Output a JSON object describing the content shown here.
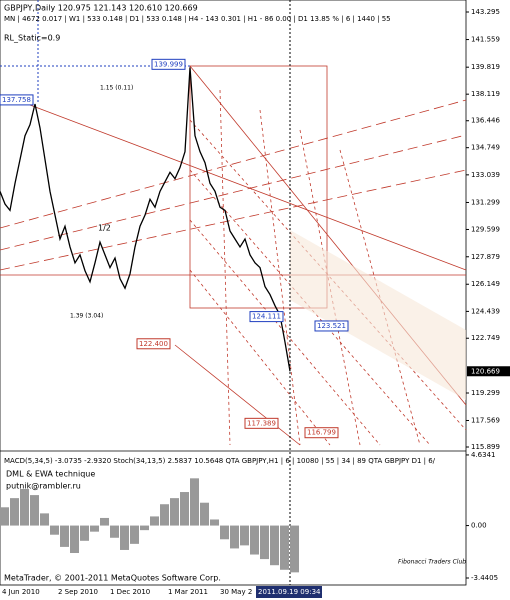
{
  "chart_data": {
    "type": "line",
    "title": "GBPJPY,Daily  120.975 121.143 120.610 120.669",
    "subtitle": "MN | 4672  0.017 | W1 | 533  0.148 | D1 | 533  0.148 | H4 - 143  0.301 | H1 - 86  0.00 | D1  13.85 % | 6 | 1440 | 55",
    "indicator_label": "RL_Static=0.9",
    "color": "#000000",
    "values": [
      132.0,
      131.2,
      130.8,
      132.5,
      134.0,
      135.5,
      136.2,
      137.5,
      136.0,
      134.0,
      132.0,
      130.5,
      129.0,
      129.8,
      128.5,
      127.5,
      128.0,
      127.0,
      126.3,
      127.5,
      128.8,
      128.0,
      127.2,
      127.8,
      126.5,
      125.9,
      126.8,
      128.5,
      129.8,
      130.5,
      131.5,
      131.0,
      132.0,
      132.6,
      133.2,
      132.8,
      133.5,
      134.5,
      139.8,
      135.5,
      134.5,
      133.8,
      132.5,
      132.0,
      131.0,
      130.8,
      129.5,
      129.0,
      128.5,
      129.0,
      128.0,
      127.5,
      127.2,
      126.0,
      125.5,
      124.8,
      124.2,
      122.5,
      120.669
    ],
    "ylim": [
      115.71,
      144.05
    ],
    "yticks": [
      143.295,
      141.559,
      139.819,
      138.119,
      136.446,
      134.749,
      133.039,
      131.299,
      129.599,
      127.879,
      126.149,
      124.439,
      122.749,
      119.299,
      117.569,
      115.899
    ],
    "current_price": 120.669,
    "x_labels": [
      "4 Jun 2010",
      "2 Sep 2010",
      "1 Dec 2010",
      "1 Mar 2011",
      "30 May 2",
      "2011.09.19 09:34"
    ],
    "annotations": [
      {
        "value": 139.999,
        "color": "#1f3fbf"
      },
      {
        "value": 137.758,
        "color": "#1f3fbf"
      },
      {
        "value": 122.4,
        "label": "122.400",
        "color": "#c0392b"
      },
      {
        "value": 124.111,
        "color": "#1f3fbf"
      },
      {
        "value": 123.521,
        "color": "#1f3fbf"
      },
      {
        "value": 117.389,
        "color": "#c0392b"
      },
      {
        "value": 116.799,
        "color": "#c0392b"
      }
    ],
    "notes": [
      "1.15 (0.11)",
      "1.39 (3.04)",
      "1/2"
    ],
    "lower_panel": {
      "label": "MACD(5,34,5) -3.0735 -2.9320  Stoch(34,13,5) 2.5837 10.5648  QTA GBPJPY,H1 | 6 | 10080 | 55 | 34 | 89  QTA GBPJPY D1 | 6/",
      "credits": [
        "DML & EWA  technique",
        "putnik@rambler.ru",
        "Fibonacci Traders Club"
      ],
      "values": [
        1.2,
        1.8,
        2.4,
        2.0,
        0.8,
        -0.6,
        -1.4,
        -1.8,
        -1.0,
        -0.4,
        0.5,
        -0.8,
        -1.6,
        -1.2,
        -0.3,
        0.6,
        1.4,
        1.8,
        2.2,
        3.1,
        1.5,
        0.4,
        -0.9,
        -1.5,
        -1.3,
        -1.9,
        -2.2,
        -2.6,
        -2.9,
        -3.07
      ],
      "color": "#999999",
      "ylim": [
        -3.44,
        4.63
      ],
      "yticks": [
        4.6341,
        {
          "value": 0,
          "label": "0.00"
        },
        -3.4405
      ]
    },
    "footer": "MetaTrader, © 2001-2011 MetaQuotes Software Corp."
  }
}
